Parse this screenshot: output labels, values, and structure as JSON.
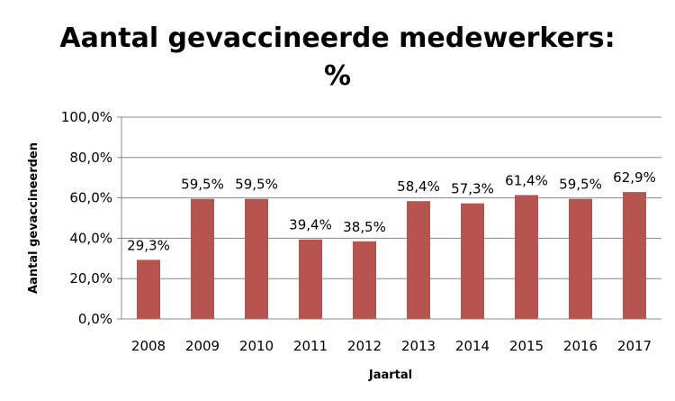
{
  "chart_data": {
    "type": "bar",
    "title_line1": "Aantal gevaccineerde medewerkers:",
    "title_line2": "%",
    "xlabel": "Jaartal",
    "ylabel": "Aantal gevaccineerden",
    "categories": [
      "2008",
      "2009",
      "2010",
      "2011",
      "2012",
      "2013",
      "2014",
      "2015",
      "2016",
      "2017"
    ],
    "values": [
      29.3,
      59.5,
      59.5,
      39.4,
      38.5,
      58.4,
      57.3,
      61.4,
      59.5,
      62.9
    ],
    "data_labels": [
      "29,3%",
      "59,5%",
      "59,5%",
      "39,4%",
      "38,5%",
      "58,4%",
      "57,3%",
      "61,4%",
      "59,5%",
      "62,9%"
    ],
    "ylim": [
      0,
      100
    ],
    "yticks": [
      0,
      20,
      40,
      60,
      80,
      100
    ],
    "ytick_labels": [
      "0,0%",
      "20,0%",
      "40,0%",
      "60,0%",
      "80,0%",
      "100,0%"
    ],
    "grid": true,
    "bar_color": "#b85450",
    "grid_color": "#888888"
  }
}
